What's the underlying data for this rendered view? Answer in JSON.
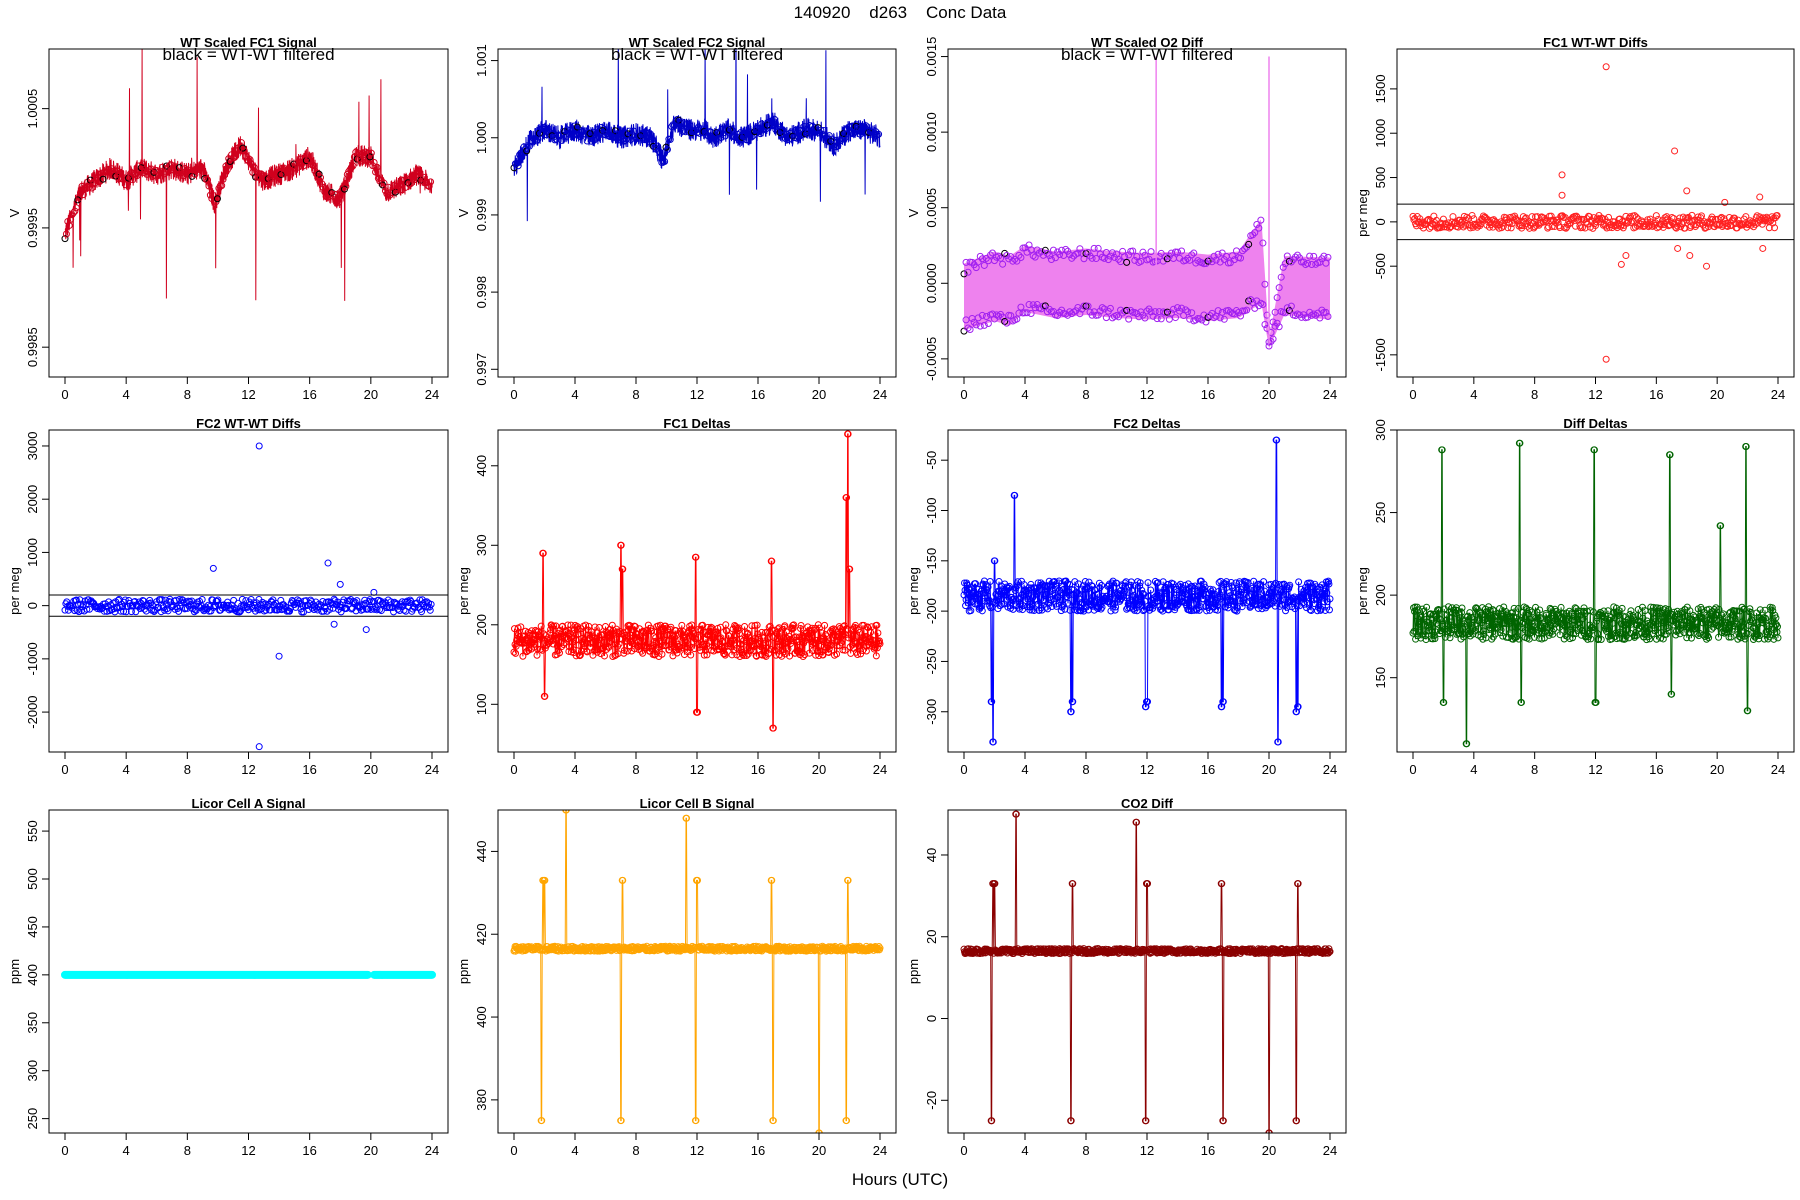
{
  "page": {
    "title": "140920    d263    Conc Data",
    "xlabel": "Hours (UTC)"
  },
  "chart_data": [
    {
      "id": "p1",
      "type": "scatter",
      "title": "WT Scaled FC1 Signal",
      "annotation": "black = WT-WT filtered",
      "ylabel": "V",
      "xlim": [
        0,
        24
      ],
      "xticks": [
        "0",
        "4",
        "8",
        "12",
        "16",
        "20",
        "24"
      ],
      "ylim": [
        0.99825,
        1.001
      ],
      "yticks": [
        0.9985,
        0.9995,
        1.0005
      ],
      "yticklabels": [
        "0.9985",
        "0.9995",
        "1.0005"
      ],
      "color": "#d0001e",
      "style": "noisy",
      "grid": false,
      "series": [
        {
          "name": "signal",
          "x": [
            0,
            1,
            2,
            3,
            4,
            5,
            6,
            7,
            8,
            9,
            9.8,
            10.5,
            11.5,
            12.5,
            13,
            14,
            15,
            16,
            17,
            18,
            19,
            20,
            21,
            22,
            23,
            24
          ],
          "y": [
            0.99945,
            0.9998,
            0.9999,
            1.0,
            0.9999,
            1.0,
            0.99995,
            1.0,
            0.99995,
            1.0,
            0.9997,
            1.0,
            1.0002,
            0.99995,
            0.9999,
            0.99995,
            1.0,
            1.0001,
            0.9998,
            0.99975,
            1.0001,
            1.0001,
            0.9998,
            0.99985,
            0.99995,
            0.99985
          ]
        }
      ]
    },
    {
      "id": "p2",
      "type": "scatter",
      "title": "WT Scaled FC2 Signal",
      "annotation": "black = WT-WT filtered",
      "ylabel": "V",
      "xlim": [
        0,
        24
      ],
      "xticks": [
        "0",
        "4",
        "8",
        "12",
        "16",
        "20",
        "24"
      ],
      "ylim": [
        0.9969,
        1.00115
      ],
      "yticks": [
        0.997,
        0.998,
        0.999,
        1.0,
        1.001
      ],
      "yticklabels": [
        "0.997",
        "0.998",
        "0.999",
        "1.000",
        "1.001"
      ],
      "color": "#0000c8",
      "style": "noisy",
      "grid": false,
      "series": [
        {
          "name": "signal",
          "x": [
            0,
            1,
            2,
            3,
            4,
            5,
            6,
            7,
            8,
            9,
            9.8,
            10.5,
            11.5,
            12.5,
            13,
            14,
            15,
            16,
            17,
            18,
            19,
            20,
            21,
            22,
            23,
            24
          ],
          "y": [
            0.9996,
            0.99995,
            1.0001,
            1.0,
            1.0001,
            1.0,
            1.0001,
            1.0,
            1.00005,
            1.0,
            0.9997,
            1.0002,
            1.0001,
            1.0001,
            1.0,
            1.0001,
            1.0,
            1.0001,
            1.0002,
            1.0,
            1.0001,
            1.0001,
            0.9999,
            1.0001,
            1.0001,
            1.0
          ]
        }
      ]
    },
    {
      "id": "p3",
      "type": "scatter",
      "title": "WT Scaled O2 Diff",
      "annotation": "black = WT-WT filtered",
      "ylabel": "V",
      "xlim": [
        0,
        24
      ],
      "xticks": [
        "0",
        "4",
        "8",
        "12",
        "16",
        "20",
        "24"
      ],
      "ylim": [
        -0.00062,
        0.00155
      ],
      "yticks": [
        -0.0005,
        0.0,
        0.0005,
        0.001,
        0.0015
      ],
      "yticklabels": [
        "-0.0005",
        "0.0000",
        "0.0005",
        "0.0010",
        "0.0015"
      ],
      "color": "#a020f0",
      "band": "#ee82ee",
      "style": "band",
      "grid": false,
      "series": [
        {
          "name": "upper",
          "x": [
            0,
            2,
            3,
            4,
            6,
            8,
            10,
            12,
            14,
            16,
            18,
            19.5,
            20,
            21,
            24
          ],
          "y": [
            0.0001,
            0.00018,
            0.00015,
            0.00022,
            0.00018,
            0.0002,
            0.00018,
            0.00017,
            0.00018,
            0.00016,
            0.00018,
            0.0004,
            -0.0004,
            0.00015,
            0.00014
          ]
        },
        {
          "name": "lower",
          "x": [
            0,
            2,
            3,
            4,
            6,
            8,
            10,
            12,
            14,
            16,
            18,
            19.5,
            20,
            21,
            24
          ],
          "y": [
            -0.00028,
            -0.00022,
            -0.00025,
            -0.00016,
            -0.0002,
            -0.00018,
            -0.0002,
            -0.00021,
            -0.0002,
            -0.00022,
            -0.0002,
            -0.0001,
            -0.0004,
            -0.00018,
            -0.00021
          ]
        }
      ]
    },
    {
      "id": "p4",
      "type": "scatter",
      "title": "FC1 WT-WT Diffs",
      "ylabel": "per meg",
      "xlim": [
        0,
        24
      ],
      "xticks": [
        "0",
        "4",
        "8",
        "12",
        "16",
        "20",
        "24"
      ],
      "ylim": [
        -1750,
        1950
      ],
      "yticks": [
        -1500,
        -500,
        0,
        500,
        1000,
        1500
      ],
      "yticklabels": [
        "-1500",
        "-500",
        "0",
        "500",
        "1000",
        "1500"
      ],
      "hlines": [
        200,
        -200
      ],
      "color": "#ff2020",
      "style": "points",
      "grid": false,
      "series": [
        {
          "name": "diffs",
          "x": [
            0,
            24
          ],
          "y": [
            0,
            0
          ]
        },
        {
          "name": "outliers",
          "x": [
            9.8,
            9.8,
            12.7,
            12.7,
            13.7,
            14.0,
            17.2,
            17.4,
            18.0,
            18.2,
            19.3,
            20.5,
            22.8,
            23.0
          ],
          "y": [
            530,
            300,
            1750,
            -1550,
            -480,
            -380,
            800,
            -300,
            350,
            -380,
            -500,
            220,
            280,
            -300
          ]
        }
      ]
    },
    {
      "id": "p5",
      "type": "scatter",
      "title": "FC2 WT-WT Diffs",
      "ylabel": "per meg",
      "xlim": [
        0,
        24
      ],
      "xticks": [
        "0",
        "4",
        "8",
        "12",
        "16",
        "20",
        "24"
      ],
      "ylim": [
        -2750,
        3300
      ],
      "yticks": [
        -2000,
        -1000,
        0,
        1000,
        2000,
        3000
      ],
      "yticklabels": [
        "-2000",
        "-1000",
        "0",
        "1000",
        "2000",
        "3000"
      ],
      "hlines": [
        200,
        -200
      ],
      "color": "#0000ff",
      "style": "points",
      "grid": false,
      "series": [
        {
          "name": "diffs",
          "x": [
            0,
            24
          ],
          "y": [
            0,
            0
          ]
        },
        {
          "name": "outliers",
          "x": [
            9.7,
            12.7,
            12.7,
            14.0,
            17.2,
            17.6,
            18.0,
            19.7,
            20.2
          ],
          "y": [
            700,
            3000,
            -2650,
            -950,
            800,
            -350,
            400,
            -450,
            250
          ]
        }
      ]
    },
    {
      "id": "p6",
      "type": "line",
      "title": "FC1 Deltas",
      "ylabel": "per meg",
      "xlim": [
        0,
        24
      ],
      "xticks": [
        "0",
        "4",
        "8",
        "12",
        "16",
        "20",
        "24"
      ],
      "ylim": [
        40,
        445
      ],
      "yticks": [
        100,
        200,
        300,
        400
      ],
      "yticklabels": [
        "100",
        "200",
        "300",
        "400"
      ],
      "color": "#ff0000",
      "style": "jitter",
      "grid": false,
      "series": [
        {
          "name": "base",
          "baseline": 180,
          "spread": 20,
          "spikes_x": [
            1.9,
            2.0,
            7.0,
            7.1,
            11.9,
            12.0,
            16.9,
            17.0,
            21.8,
            21.9,
            22.0
          ],
          "spikes_y": [
            290,
            110,
            300,
            270,
            285,
            90,
            280,
            70,
            360,
            440,
            270
          ]
        }
      ]
    },
    {
      "id": "p7",
      "type": "line",
      "title": "FC2 Deltas",
      "ylabel": "per meg",
      "xlim": [
        0,
        24
      ],
      "xticks": [
        "0",
        "4",
        "8",
        "12",
        "16",
        "20",
        "24"
      ],
      "ylim": [
        -340,
        -20
      ],
      "yticks": [
        -300,
        -250,
        -200,
        -150,
        -100,
        -50
      ],
      "yticklabels": [
        "-300",
        "-250",
        "-200",
        "-150",
        "-100",
        "-50"
      ],
      "color": "#0000ff",
      "style": "jitter",
      "grid": false,
      "series": [
        {
          "name": "base",
          "baseline": -185,
          "spread": 15,
          "spikes_x": [
            1.8,
            1.9,
            2.0,
            3.3,
            7.0,
            7.1,
            11.9,
            12.0,
            16.9,
            17.0,
            20.5,
            20.6,
            21.8,
            21.9
          ],
          "spikes_y": [
            -290,
            -330,
            -150,
            -85,
            -300,
            -290,
            -295,
            -290,
            -295,
            -290,
            -30,
            -330,
            -300,
            -295
          ]
        }
      ]
    },
    {
      "id": "p8",
      "type": "line",
      "title": "Diff Deltas",
      "ylabel": "per meg",
      "xlim": [
        0,
        24
      ],
      "xticks": [
        "0",
        "4",
        "8",
        "12",
        "16",
        "20",
        "24"
      ],
      "ylim": [
        105,
        300
      ],
      "yticks": [
        150,
        200,
        250,
        300
      ],
      "yticklabels": [
        "150",
        "200",
        "250",
        "300"
      ],
      "color": "#006400",
      "style": "jitter",
      "grid": false,
      "series": [
        {
          "name": "base",
          "baseline": 183,
          "spread": 10,
          "spikes_x": [
            1.9,
            2.0,
            3.5,
            7.0,
            7.1,
            11.9,
            12.0,
            16.9,
            17.0,
            20.2,
            21.9,
            22.0
          ],
          "spikes_y": [
            288,
            135,
            110,
            292,
            135,
            288,
            135,
            285,
            140,
            242,
            290,
            130
          ]
        }
      ]
    },
    {
      "id": "p9",
      "type": "scatter",
      "title": "Licor Cell A Signal",
      "ylabel": "ppm",
      "xlim": [
        0,
        24
      ],
      "xticks": [
        "0",
        "4",
        "8",
        "12",
        "16",
        "20",
        "24"
      ],
      "ylim": [
        235,
        572
      ],
      "yticks": [
        250,
        300,
        350,
        400,
        450,
        500,
        550
      ],
      "yticklabels": [
        "250",
        "300",
        "350",
        "400",
        "450",
        "500",
        "550"
      ],
      "color": "#00ffff",
      "style": "flat",
      "grid": false,
      "series": [
        {
          "name": "cellA",
          "x": [
            0,
            19.8,
            20.2,
            24
          ],
          "y": [
            400,
            400,
            400,
            400
          ]
        }
      ]
    },
    {
      "id": "p10",
      "type": "line",
      "title": "Licor Cell B Signal",
      "ylabel": "ppm",
      "xlim": [
        0,
        24
      ],
      "xticks": [
        "0",
        "4",
        "8",
        "12",
        "16",
        "20",
        "24"
      ],
      "ylim": [
        372,
        450
      ],
      "yticks": [
        380,
        400,
        420,
        440
      ],
      "yticklabels": [
        "380",
        "400",
        "420",
        "440"
      ],
      "color": "#ffa500",
      "style": "jitter",
      "grid": false,
      "series": [
        {
          "name": "base",
          "baseline": 416.5,
          "spread": 0.6,
          "spikes_x": [
            1.8,
            1.9,
            2.0,
            3.4,
            7.0,
            7.1,
            11.3,
            11.9,
            12.0,
            16.9,
            17.0,
            20.0,
            21.8,
            21.9
          ],
          "spikes_y": [
            375,
            433,
            433,
            450,
            375,
            433,
            448,
            375,
            433,
            433,
            375,
            372,
            375,
            433
          ]
        }
      ]
    },
    {
      "id": "p11",
      "type": "line",
      "title": "CO2 Diff",
      "ylabel": "ppm",
      "xlim": [
        0,
        24
      ],
      "xticks": [
        "0",
        "4",
        "8",
        "12",
        "16",
        "20",
        "24"
      ],
      "ylim": [
        -28,
        51
      ],
      "yticks": [
        -20,
        0,
        20,
        40
      ],
      "yticklabels": [
        "-20",
        "0",
        "20",
        "40"
      ],
      "color": "#8b0000",
      "style": "jitter",
      "grid": false,
      "series": [
        {
          "name": "base",
          "baseline": 16.5,
          "spread": 0.6,
          "spikes_x": [
            1.8,
            1.9,
            2.0,
            3.4,
            7.0,
            7.1,
            11.3,
            11.9,
            12.0,
            16.9,
            17.0,
            20.0,
            21.8,
            21.9
          ],
          "spikes_y": [
            -25,
            33,
            33,
            50,
            -25,
            33,
            48,
            -25,
            33,
            33,
            -25,
            -28,
            -25,
            33
          ]
        }
      ]
    }
  ]
}
